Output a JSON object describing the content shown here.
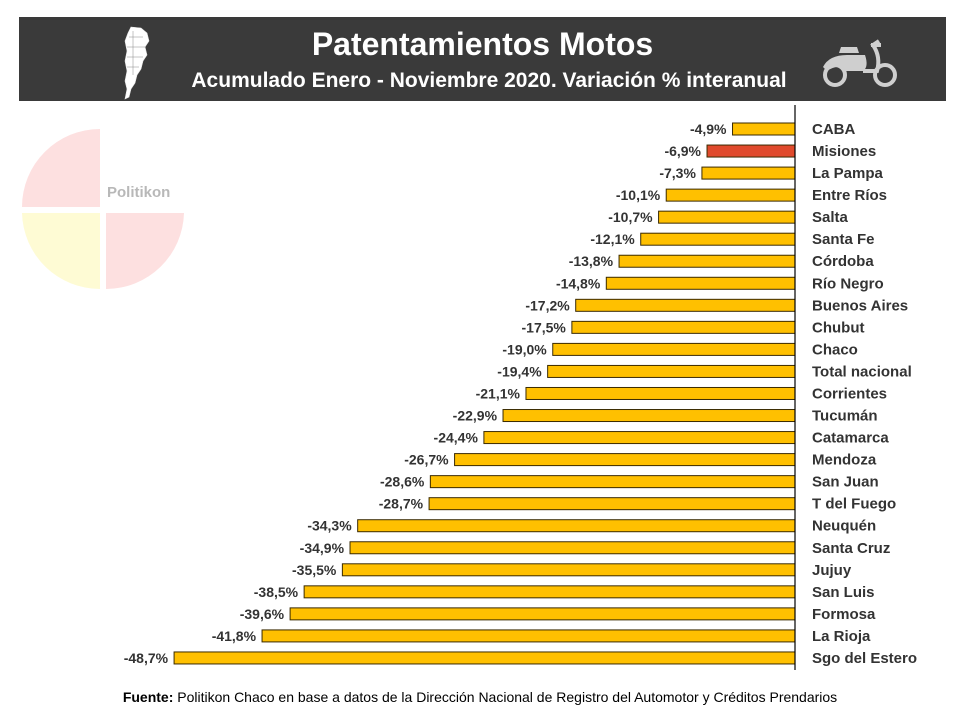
{
  "header": {
    "title": "Patentamientos Motos",
    "subtitle": "Acumulado Enero - Noviembre 2020. Variación % interanual"
  },
  "watermark": {
    "text": "Politikon"
  },
  "source": {
    "label": "Fuente:",
    "text": "Politikon Chaco en base a datos de la Dirección Nacional de Registro del Automotor y Créditos Prendarios"
  },
  "icons": {
    "map": "argentina-map-icon",
    "moto": "scooter-icon"
  },
  "colors": {
    "bar": "#FFC000",
    "highlight": "#E04A2C",
    "outline": "#3a2a00",
    "header_bg": "#3a3a3a"
  },
  "chart_data": {
    "type": "bar",
    "orientation": "horizontal",
    "title": "Patentamientos Motos",
    "subtitle": "Acumulado Enero - Noviembre 2020. Variación % interanual",
    "xlabel": "",
    "ylabel": "",
    "xlim": [
      -50,
      0
    ],
    "grid": false,
    "legend": "none",
    "highlight": "Misiones",
    "categories": [
      "CABA",
      "Misiones",
      "La Pampa",
      "Entre Ríos",
      "Salta",
      "Santa Fe",
      "Córdoba",
      "Río Negro",
      "Buenos Aires",
      "Chubut",
      "Chaco",
      "Total nacional",
      "Corrientes",
      "Tucumán",
      "Catamarca",
      "Mendoza",
      "San Juan",
      "T del Fuego",
      "Neuquén",
      "Santa Cruz",
      "Jujuy",
      "San Luis",
      "Formosa",
      "La Rioja",
      "Sgo del Estero"
    ],
    "values": [
      -4.9,
      -6.9,
      -7.3,
      -10.1,
      -10.7,
      -12.1,
      -13.8,
      -14.8,
      -17.2,
      -17.5,
      -19.0,
      -19.4,
      -21.1,
      -22.9,
      -24.4,
      -26.7,
      -28.6,
      -28.7,
      -34.3,
      -34.9,
      -35.5,
      -38.5,
      -39.6,
      -41.8,
      -48.7
    ],
    "data_labels": [
      "-4,9%",
      "-6,9%",
      "-7,3%",
      "-10,1%",
      "-10,7%",
      "-12,1%",
      "-13,8%",
      "-14,8%",
      "-17,2%",
      "-17,5%",
      "-19,0%",
      "-19,4%",
      "-21,1%",
      "-22,9%",
      "-24,4%",
      "-26,7%",
      "-28,6%",
      "-28,7%",
      "-34,3%",
      "-34,9%",
      "-35,5%",
      "-38,5%",
      "-39,6%",
      "-41,8%",
      "-48,7%"
    ]
  }
}
